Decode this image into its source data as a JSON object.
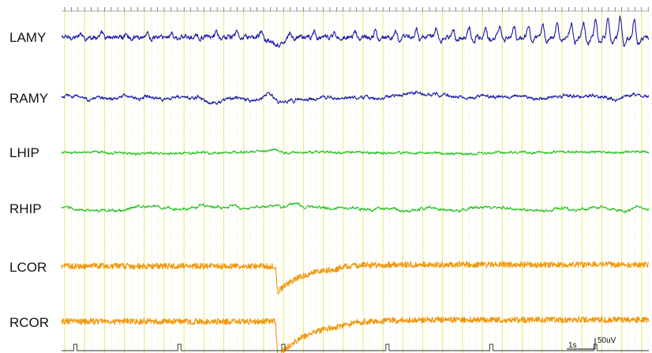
{
  "colors": {
    "amygdala": "#1a1aa6",
    "hippocampus": "#22c022",
    "cortex": "#f0960a",
    "grid_major": "#e8e86a",
    "grid_minor": "#eded9a",
    "marker": "#333333"
  },
  "chart_data": {
    "type": "line",
    "title": "",
    "xlabel": "",
    "ylabel": "",
    "grid": true,
    "scale_bar": {
      "time_label": "1s",
      "amplitude_label": "50uV"
    },
    "x_range_s": [
      0,
      14.4
    ],
    "series": [
      {
        "name": "LAMY",
        "color_key": "amygdala",
        "noise_uv": 6,
        "wave": "spikes",
        "events": [
          {
            "t": 5.3,
            "amp_uv": -22,
            "width_s": 0.35
          }
        ],
        "spikes": [
          {
            "t": 0.5,
            "amp_uv": 10
          },
          {
            "t": 1.0,
            "amp_uv": 12
          },
          {
            "t": 1.6,
            "amp_uv": 11
          },
          {
            "t": 2.1,
            "amp_uv": 14
          },
          {
            "t": 2.7,
            "amp_uv": 15
          },
          {
            "t": 3.3,
            "amp_uv": 14
          },
          {
            "t": 3.8,
            "amp_uv": 13
          },
          {
            "t": 4.3,
            "amp_uv": 18
          },
          {
            "t": 4.9,
            "amp_uv": 16
          },
          {
            "t": 5.6,
            "amp_uv": 15
          },
          {
            "t": 6.2,
            "amp_uv": 17
          },
          {
            "t": 6.7,
            "amp_uv": 12
          },
          {
            "t": 7.2,
            "amp_uv": 18
          },
          {
            "t": 7.7,
            "amp_uv": 20
          },
          {
            "t": 8.2,
            "amp_uv": 22
          },
          {
            "t": 8.7,
            "amp_uv": 24
          },
          {
            "t": 9.2,
            "amp_uv": 28
          },
          {
            "t": 9.6,
            "amp_uv": 26
          },
          {
            "t": 10.0,
            "amp_uv": 30
          },
          {
            "t": 10.4,
            "amp_uv": 28
          },
          {
            "t": 10.75,
            "amp_uv": 32
          },
          {
            "t": 11.1,
            "amp_uv": 34
          },
          {
            "t": 11.45,
            "amp_uv": 36
          },
          {
            "t": 11.8,
            "amp_uv": 38
          },
          {
            "t": 12.15,
            "amp_uv": 42
          },
          {
            "t": 12.5,
            "amp_uv": 44
          },
          {
            "t": 12.8,
            "amp_uv": 48
          },
          {
            "t": 13.1,
            "amp_uv": 50
          },
          {
            "t": 13.4,
            "amp_uv": 52
          },
          {
            "t": 13.7,
            "amp_uv": 60
          },
          {
            "t": 14.05,
            "amp_uv": 58
          }
        ]
      },
      {
        "name": "RAMY",
        "color_key": "amygdala",
        "noise_uv": 4,
        "wave": "slow",
        "events": [
          {
            "t": 1.5,
            "amp_uv": 8,
            "width_s": 0.6
          },
          {
            "t": 2.9,
            "amp_uv": 6,
            "width_s": 0.3
          },
          {
            "t": 3.6,
            "amp_uv": -10,
            "width_s": 0.35
          },
          {
            "t": 4.3,
            "amp_uv": 8,
            "width_s": 0.5
          },
          {
            "t": 5.1,
            "amp_uv": 10,
            "width_s": 0.25
          },
          {
            "t": 5.35,
            "amp_uv": -10,
            "width_s": 0.3
          },
          {
            "t": 13.6,
            "amp_uv": -12,
            "width_s": 0.35
          },
          {
            "t": 13.95,
            "amp_uv": 6,
            "width_s": 0.4
          }
        ]
      },
      {
        "name": "LHIP",
        "color_key": "hippocampus",
        "noise_uv": 3,
        "wave": "flat",
        "events": [
          {
            "t": 5.2,
            "amp_uv": 6,
            "width_s": 0.3
          },
          {
            "t": 5.5,
            "amp_uv": -3,
            "width_s": 0.3
          }
        ]
      },
      {
        "name": "RHIP",
        "color_key": "hippocampus",
        "noise_uv": 3,
        "wave": "slow",
        "events": [
          {
            "t": 0.6,
            "amp_uv": -5,
            "width_s": 0.3
          },
          {
            "t": 3.1,
            "amp_uv": -6,
            "width_s": 0.3
          },
          {
            "t": 4.2,
            "amp_uv": 4,
            "width_s": 0.5
          },
          {
            "t": 5.2,
            "amp_uv": 7,
            "width_s": 0.35
          },
          {
            "t": 6.0,
            "amp_uv": -5,
            "width_s": 0.3
          },
          {
            "t": 7.3,
            "amp_uv": -4,
            "width_s": 0.3
          },
          {
            "t": 9.9,
            "amp_uv": -4,
            "width_s": 0.3
          },
          {
            "t": 12.5,
            "amp_uv": -4,
            "width_s": 0.3
          },
          {
            "t": 13.8,
            "amp_uv": -6,
            "width_s": 0.3
          }
        ]
      },
      {
        "name": "LCOR",
        "color_key": "cortex",
        "noise_uv": 7,
        "wave": "cortex",
        "dip": {
          "t": 5.3,
          "amp_uv": -40,
          "recovery_s": 1.5
        }
      },
      {
        "name": "RCOR",
        "color_key": "cortex",
        "noise_uv": 7,
        "wave": "cortex",
        "dip": {
          "t": 5.3,
          "amp_uv": -55,
          "recovery_s": 1.8
        }
      }
    ],
    "markers_s": [
      0.3,
      2.85,
      5.4,
      7.95,
      10.5,
      13.05
    ]
  }
}
